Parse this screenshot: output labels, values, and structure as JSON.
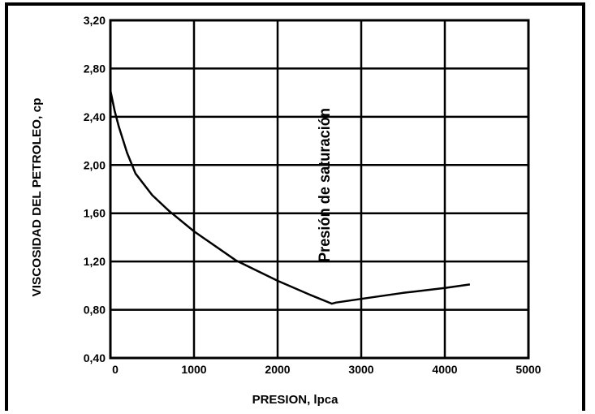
{
  "chart_data": {
    "type": "line",
    "xlabel": "PRESION, lpca",
    "ylabel": "VISCOSIDAD DEL PETROLEO, cp",
    "xlim": [
      0,
      5000
    ],
    "ylim": [
      0.4,
      3.2
    ],
    "x_ticks": [
      "0",
      "1000",
      "2000",
      "3000",
      "4000",
      "5000"
    ],
    "y_ticks": [
      "0,40",
      "0,80",
      "1,20",
      "1,60",
      "2,00",
      "2,40",
      "2,80",
      "3,20"
    ],
    "grid": true,
    "annotation": {
      "text": "Presión de saturación",
      "x": 2650
    },
    "series": [
      {
        "points": [
          [
            0,
            2.62
          ],
          [
            50,
            2.45
          ],
          [
            100,
            2.32
          ],
          [
            200,
            2.1
          ],
          [
            300,
            1.93
          ],
          [
            500,
            1.75
          ],
          [
            700,
            1.62
          ],
          [
            1000,
            1.45
          ],
          [
            1500,
            1.21
          ],
          [
            2000,
            1.04
          ],
          [
            2400,
            0.92
          ],
          [
            2650,
            0.85
          ],
          [
            2700,
            0.86
          ],
          [
            3000,
            0.89
          ],
          [
            3500,
            0.94
          ],
          [
            4000,
            0.98
          ],
          [
            4300,
            1.01
          ]
        ]
      }
    ]
  }
}
